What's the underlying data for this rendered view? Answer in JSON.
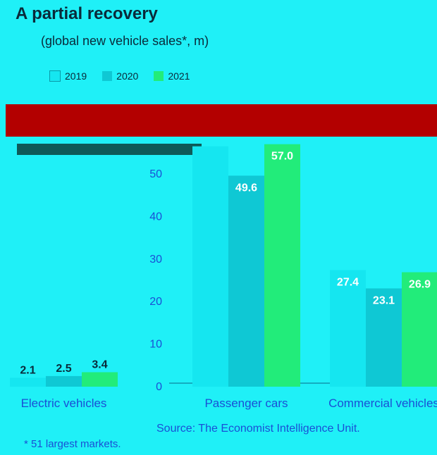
{
  "header": {
    "title": "A partial recovery",
    "subtitle": "(global new vehicle sales*, m)"
  },
  "footer": {
    "source": "Source: The Economist Intelligence Unit.",
    "footnote": "* 51 largest markets."
  },
  "colors": {
    "background": "#1ff0f7",
    "band": "#b30000",
    "axis_text": "#1a4fd6",
    "data_label": "#ffffff"
  },
  "chart_data": {
    "type": "bar",
    "title": "A partial recovery",
    "subtitle": "(global new vehicle sales*, m)",
    "categories": [
      "Electric vehicles",
      "Passenger cars",
      "Commercial vehicles"
    ],
    "series": [
      {
        "name": "2019",
        "color": "#15e6f0",
        "values": [
          2.1,
          56.5,
          27.4
        ]
      },
      {
        "name": "2020",
        "color": "#0fc8d4",
        "values": [
          2.5,
          49.6,
          23.1
        ]
      },
      {
        "name": "2021",
        "color": "#22ec7a",
        "values": [
          3.4,
          57.0,
          26.9
        ]
      }
    ],
    "labeled_values": [
      [
        2.1,
        2.5,
        3.4
      ],
      [
        null,
        49.6,
        57.0
      ],
      [
        27.4,
        23.1,
        26.9
      ]
    ],
    "yticks": [
      0,
      10,
      20,
      30,
      40,
      50
    ],
    "ylim": [
      0,
      60
    ],
    "grid": false,
    "legend": "top-left"
  }
}
